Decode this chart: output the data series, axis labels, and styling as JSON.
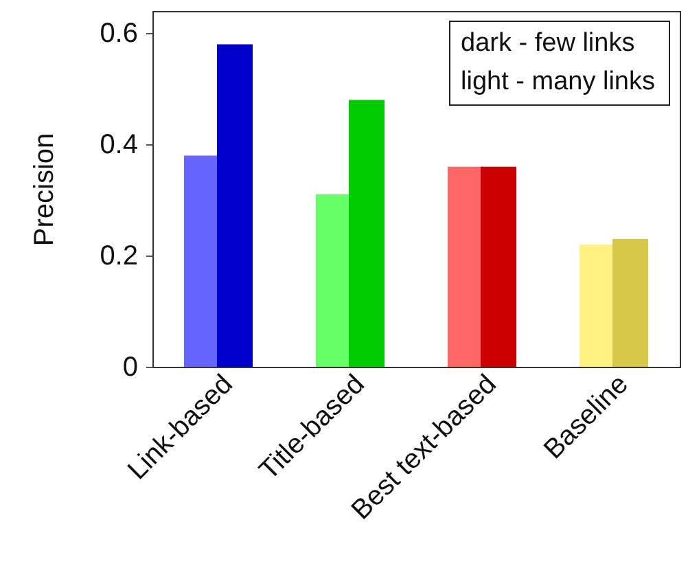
{
  "chart_data": {
    "type": "bar",
    "ylabel": "Precision",
    "categories": [
      "Link-based",
      "Title-based",
      "Best text-based",
      "Baseline"
    ],
    "series": [
      {
        "colors": [
          "#6666ff",
          "#66ff66",
          "#ff6666",
          "#fff282"
        ],
        "values": [
          0.38,
          0.31,
          0.36,
          0.22
        ]
      },
      {
        "colors": [
          "#0000cc",
          "#00cc00",
          "#cc0000",
          "#d8c84a"
        ],
        "values": [
          0.58,
          0.48,
          0.36,
          0.23
        ]
      }
    ],
    "ylim": [
      0,
      0.64
    ],
    "yticks": [
      0,
      0.2,
      0.4,
      0.6
    ],
    "grid": false,
    "annotations": [
      "dark - few links",
      "light - many links"
    ]
  }
}
